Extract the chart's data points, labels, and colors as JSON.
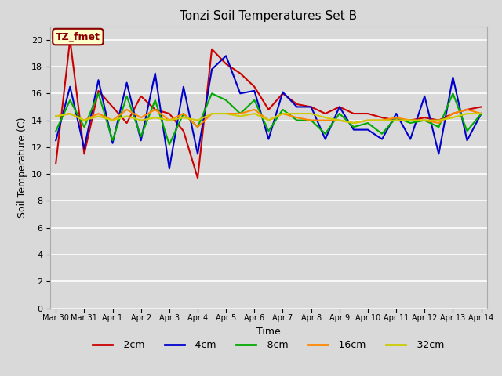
{
  "title": "Tonzi Soil Temperatures Set B",
  "xlabel": "Time",
  "ylabel": "Soil Temperature (C)",
  "annotation": "TZ_fmet",
  "ylim": [
    0,
    21
  ],
  "yticks": [
    0,
    2,
    4,
    6,
    8,
    10,
    12,
    14,
    16,
    18,
    20
  ],
  "x_labels": [
    "Mar 30",
    "Mar 31",
    "Apr 1",
    "Apr 2",
    "Apr 3",
    "Apr 4",
    "Apr 5",
    "Apr 6",
    "Apr 7",
    "Apr 8",
    "Apr 9",
    "Apr 10",
    "Apr 11",
    "Apr 12",
    "Apr 13",
    "Apr 14"
  ],
  "x_values": [
    0,
    1,
    2,
    3,
    4,
    5,
    6,
    7,
    8,
    9,
    10,
    11,
    12,
    13,
    14,
    15
  ],
  "series": {
    "-2cm": {
      "color": "#cc0000",
      "data_x": [
        0,
        0.5,
        1,
        1.5,
        2,
        2.5,
        3,
        3.5,
        4,
        4.5,
        5,
        5.5,
        6,
        6.5,
        7,
        7.5,
        8,
        8.5,
        9,
        9.5,
        10,
        10.5,
        11,
        11.5,
        12,
        12.5,
        13,
        13.5,
        14,
        14.5,
        15
      ],
      "data_y": [
        10.8,
        20.0,
        11.5,
        16.2,
        15.0,
        13.8,
        15.8,
        14.8,
        14.5,
        13.2,
        9.7,
        19.3,
        18.2,
        17.5,
        16.5,
        14.8,
        16.0,
        15.2,
        15.0,
        14.5,
        15.0,
        14.5,
        14.5,
        14.2,
        14.0,
        14.0,
        14.2,
        14.0,
        14.5,
        14.8,
        15.0
      ]
    },
    "-4cm": {
      "color": "#0000cc",
      "data_x": [
        0,
        0.5,
        1,
        1.5,
        2,
        2.5,
        3,
        3.5,
        4,
        4.5,
        5,
        5.5,
        6,
        6.5,
        7,
        7.5,
        8,
        8.5,
        9,
        9.5,
        10,
        10.5,
        11,
        11.5,
        12,
        12.5,
        13,
        13.5,
        14,
        14.5,
        15
      ],
      "data_y": [
        12.5,
        16.5,
        11.9,
        17.0,
        12.3,
        16.8,
        12.5,
        17.5,
        10.4,
        16.5,
        11.5,
        17.8,
        18.8,
        16.0,
        16.2,
        12.6,
        16.1,
        15.0,
        15.0,
        12.6,
        15.0,
        13.3,
        13.3,
        12.6,
        14.5,
        12.6,
        15.8,
        11.5,
        17.2,
        12.5,
        14.5
      ]
    },
    "-8cm": {
      "color": "#00aa00",
      "data_x": [
        0,
        0.5,
        1,
        1.5,
        2,
        2.5,
        3,
        3.5,
        4,
        4.5,
        5,
        5.5,
        6,
        6.5,
        7,
        7.5,
        8,
        8.5,
        9,
        9.5,
        10,
        10.5,
        11,
        11.5,
        12,
        12.5,
        13,
        13.5,
        14,
        14.5,
        15
      ],
      "data_y": [
        13.2,
        15.5,
        13.5,
        16.0,
        12.5,
        15.8,
        12.8,
        15.5,
        12.2,
        14.5,
        13.5,
        16.0,
        15.5,
        14.5,
        15.5,
        13.2,
        14.8,
        14.0,
        14.0,
        13.0,
        14.5,
        13.5,
        13.8,
        13.0,
        14.2,
        13.8,
        14.0,
        13.5,
        16.0,
        13.2,
        14.5
      ]
    },
    "-16cm": {
      "color": "#ff8800",
      "data_x": [
        0,
        0.5,
        1,
        1.5,
        2,
        2.5,
        3,
        3.5,
        4,
        4.5,
        5,
        5.5,
        6,
        6.5,
        7,
        7.5,
        8,
        8.5,
        9,
        9.5,
        10,
        10.5,
        11,
        11.5,
        12,
        12.5,
        13,
        13.5,
        14,
        14.5,
        15
      ],
      "data_y": [
        14.3,
        14.5,
        14.0,
        14.5,
        14.0,
        14.8,
        14.2,
        14.8,
        14.0,
        14.5,
        13.5,
        14.5,
        14.5,
        14.5,
        14.8,
        14.0,
        14.5,
        14.2,
        14.0,
        14.0,
        14.0,
        13.8,
        14.0,
        14.0,
        14.2,
        14.0,
        14.0,
        13.8,
        14.5,
        14.8,
        14.5
      ]
    },
    "-32cm": {
      "color": "#cccc00",
      "data_x": [
        0,
        0.5,
        1,
        1.5,
        2,
        2.5,
        3,
        3.5,
        4,
        4.5,
        5,
        5.5,
        6,
        6.5,
        7,
        7.5,
        8,
        8.5,
        9,
        9.5,
        10,
        10.5,
        11,
        11.5,
        12,
        12.5,
        13,
        13.5,
        14,
        14.5,
        15
      ],
      "data_y": [
        14.3,
        14.5,
        14.0,
        14.3,
        14.0,
        14.3,
        14.0,
        14.2,
        14.0,
        14.2,
        14.0,
        14.5,
        14.5,
        14.3,
        14.5,
        14.0,
        14.5,
        14.5,
        14.5,
        14.2,
        14.0,
        13.8,
        14.0,
        14.0,
        14.0,
        14.0,
        14.0,
        14.0,
        14.2,
        14.5,
        14.5
      ]
    }
  },
  "legend_labels": [
    "-2cm",
    "-4cm",
    "-8cm",
    "-16cm",
    "-32cm"
  ],
  "legend_colors": [
    "#cc0000",
    "#0000cc",
    "#00aa00",
    "#ff8800",
    "#cccc00"
  ],
  "bg_color": "#d9d9d9",
  "plot_bg_color": "#d9d9d9",
  "grid_color": "#ffffff",
  "title_fontsize": 11,
  "axis_label_fontsize": 9,
  "tick_fontsize": 8,
  "linewidth": 1.5
}
